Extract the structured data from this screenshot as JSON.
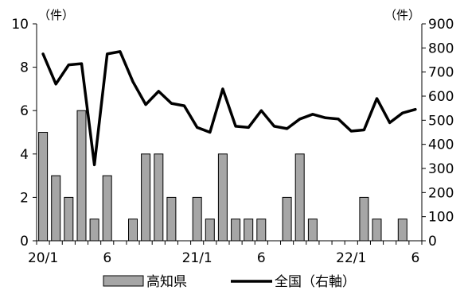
{
  "chart_data": {
    "type": "bar+line",
    "units": {
      "left": "（件）",
      "right": "（件）"
    },
    "x_tick_labels": [
      {
        "index": 0,
        "label": "20/1"
      },
      {
        "index": 5,
        "label": "6"
      },
      {
        "index": 12,
        "label": "21/1"
      },
      {
        "index": 17,
        "label": "6"
      },
      {
        "index": 24,
        "label": "22/1"
      },
      {
        "index": 29,
        "label": "6"
      }
    ],
    "left_axis": {
      "min": 0,
      "max": 10,
      "ticks": [
        0,
        2,
        4,
        6,
        8,
        10
      ]
    },
    "right_axis": {
      "min": 0,
      "max": 900,
      "ticks": [
        0,
        100,
        200,
        300,
        400,
        500,
        600,
        700,
        800,
        900
      ]
    },
    "series": [
      {
        "name": "高知県",
        "type": "bar",
        "axis": "left",
        "color": "#a6a6a6",
        "values": [
          5,
          3,
          2,
          6,
          1,
          3,
          0,
          1,
          4,
          4,
          2,
          0,
          2,
          1,
          4,
          1,
          1,
          1,
          0,
          2,
          4,
          1,
          0,
          0,
          0,
          2,
          1,
          0,
          1,
          0
        ]
      },
      {
        "name": "全国（右軸）",
        "type": "line",
        "axis": "right",
        "color": "#000000",
        "values": [
          775,
          650,
          730,
          735,
          315,
          775,
          785,
          660,
          565,
          620,
          570,
          560,
          470,
          450,
          630,
          475,
          470,
          540,
          475,
          465,
          505,
          525,
          510,
          505,
          455,
          460,
          590,
          490,
          530,
          545
        ]
      }
    ]
  },
  "legend": {
    "bar_label": "高知県",
    "line_label": "全国（右軸）"
  }
}
